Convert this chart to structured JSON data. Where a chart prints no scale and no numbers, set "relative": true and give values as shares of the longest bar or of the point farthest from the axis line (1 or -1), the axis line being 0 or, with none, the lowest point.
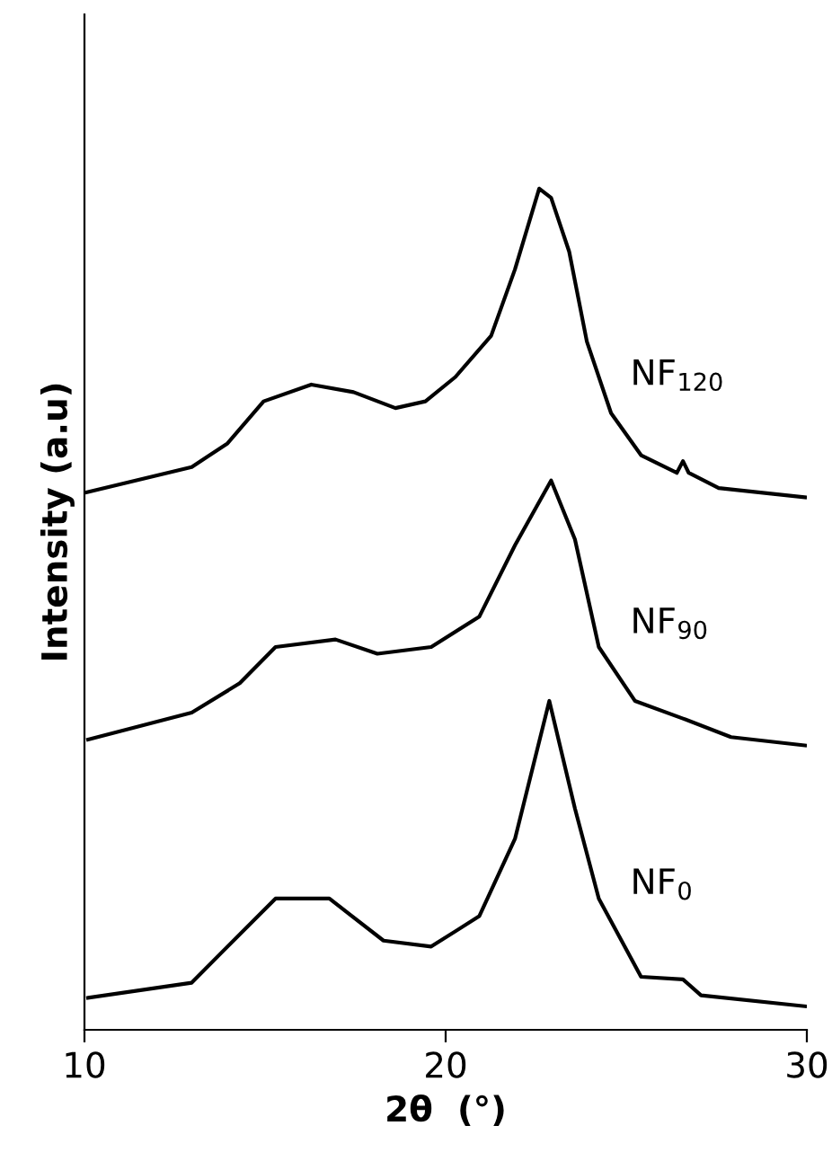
{
  "chart_data": {
    "type": "line",
    "relative": true,
    "xlabel": "2θ  (°)",
    "ylabel": "Intensity (a.u)",
    "xlim": [
      10,
      30
    ],
    "xticks": [
      10,
      20,
      30
    ],
    "grid": false,
    "legend": false,
    "marker": "none",
    "line_style": "solid",
    "tick_labels": "x",
    "series": [
      {
        "name": "NF$_{120}$",
        "color": "#000000",
        "x": [
          10.07,
          12.97,
          13.96,
          14.96,
          16.28,
          17.45,
          18.61,
          19.44,
          20.27,
          21.26,
          21.92,
          22.59,
          22.92,
          23.42,
          23.91,
          24.58,
          25.41,
          26.4,
          26.57,
          26.73,
          27.56,
          29.95
        ],
        "values": [
          0.639,
          0.669,
          0.697,
          0.747,
          0.767,
          0.758,
          0.739,
          0.747,
          0.776,
          0.825,
          0.904,
          1.0,
          0.989,
          0.925,
          0.818,
          0.733,
          0.683,
          0.662,
          0.676,
          0.662,
          0.644,
          0.633
        ]
      },
      {
        "name": "NF$_{90}$",
        "color": "#000000",
        "x": [
          10.1,
          12.97,
          14.3,
          15.29,
          16.95,
          18.11,
          19.6,
          20.93,
          21.92,
          22.92,
          23.58,
          24.24,
          25.24,
          26.57,
          27.9,
          29.95
        ],
        "values": [
          0.345,
          0.377,
          0.412,
          0.455,
          0.464,
          0.447,
          0.455,
          0.491,
          0.576,
          0.653,
          0.583,
          0.455,
          0.391,
          0.37,
          0.348,
          0.338
        ]
      },
      {
        "name": "NF$_{0}$",
        "color": "#000000",
        "x": [
          10.1,
          12.97,
          13.8,
          15.29,
          16.78,
          18.28,
          19.6,
          20.93,
          21.92,
          22.87,
          23.58,
          24.24,
          25.41,
          26.57,
          27.07,
          29.95
        ],
        "values": [
          0.038,
          0.056,
          0.092,
          0.156,
          0.156,
          0.106,
          0.099,
          0.135,
          0.227,
          0.391,
          0.263,
          0.156,
          0.063,
          0.06,
          0.041,
          0.028
        ]
      }
    ]
  }
}
